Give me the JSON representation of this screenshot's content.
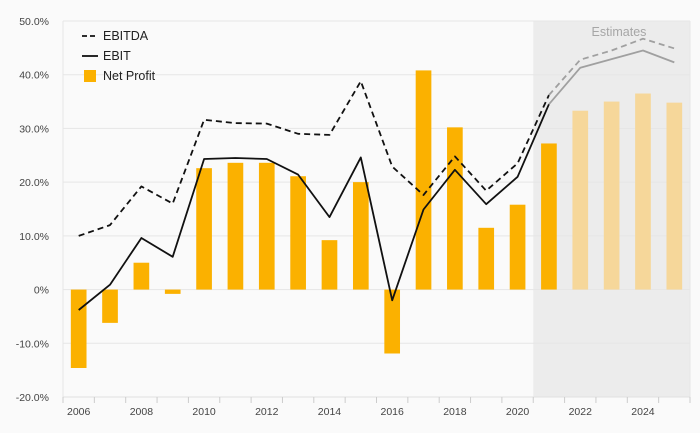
{
  "chart_data": {
    "type": "bar",
    "x": [
      "2006",
      "2007",
      "2008",
      "2009",
      "2010",
      "2011",
      "2012",
      "2013",
      "2014",
      "2015",
      "2016",
      "2017",
      "2018",
      "2019",
      "2020",
      "2021",
      "2022",
      "2023",
      "2024",
      "2025"
    ],
    "x_tick_labels": [
      "2006",
      "2008",
      "2010",
      "2012",
      "2014",
      "2016",
      "2018",
      "2020",
      "2022",
      "2024"
    ],
    "y_tick_labels": [
      "50.0%",
      "40.0%",
      "30.0%",
      "20.0%",
      "10.0%",
      "0%",
      "-10.0%",
      "-20.0%"
    ],
    "ylim": [
      -20,
      50
    ],
    "estimates_label": "Estimates",
    "estimates_from": "2022",
    "series": [
      {
        "name": "EBITDA",
        "kind": "line",
        "style": "dashed",
        "values": [
          10.0,
          12.0,
          19.2,
          16.0,
          31.6,
          31.0,
          30.9,
          29.0,
          28.8,
          38.8,
          22.9,
          17.6,
          24.8,
          18.4,
          23.5,
          36.2,
          42.8,
          44.5,
          46.7,
          44.9
        ]
      },
      {
        "name": "EBIT",
        "kind": "line",
        "style": "solid",
        "values": [
          -3.8,
          0.9,
          9.6,
          6.1,
          24.3,
          24.5,
          24.3,
          21.4,
          13.5,
          24.6,
          -2.0,
          14.9,
          22.3,
          15.9,
          21.0,
          34.5,
          41.3,
          42.9,
          44.5,
          42.3
        ]
      },
      {
        "name": "Net Profit",
        "kind": "bar",
        "values": [
          -14.6,
          -6.2,
          5.0,
          -0.8,
          22.6,
          23.6,
          23.6,
          21.1,
          9.2,
          20.0,
          -11.9,
          40.8,
          30.2,
          11.5,
          15.8,
          27.2,
          33.3,
          35.0,
          36.5,
          34.8
        ]
      }
    ],
    "grid": true,
    "legend_position": "top-left",
    "colors": {
      "bar": "#fbb100",
      "bar_estimate": "#f6d79a",
      "line_actual": "#111111",
      "line_estimate": "#a0a0a0",
      "estimate_shade": "#ececec"
    }
  }
}
